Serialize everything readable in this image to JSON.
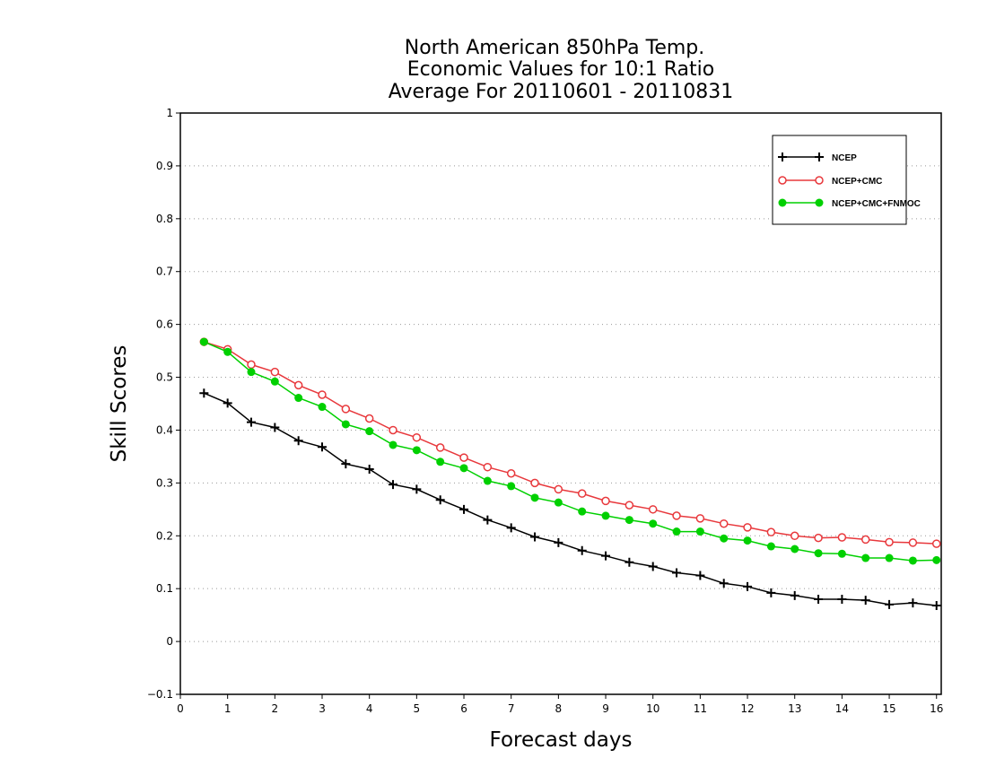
{
  "chart_data": {
    "type": "line",
    "title_lines": [
      "North American 850hPa Temp.",
      "Economic Values for 10:1 Ratio",
      "Average For 20110601 - 20110831"
    ],
    "xlabel": "Forecast days",
    "ylabel": "Skill Scores",
    "xlim": [
      0,
      16.1
    ],
    "ylim": [
      -0.1,
      1.0
    ],
    "x_ticks": [
      0,
      1,
      2,
      3,
      4,
      5,
      6,
      7,
      8,
      9,
      10,
      11,
      12,
      13,
      14,
      15,
      16
    ],
    "x_tick_labels": [
      "0",
      "1",
      "2",
      "3",
      "4",
      "5",
      "6",
      "7",
      "8",
      "9",
      "10",
      "11",
      "12",
      "13",
      "14",
      "15",
      "16"
    ],
    "y_ticks": [
      -0.1,
      0,
      0.1,
      0.2,
      0.3,
      0.4,
      0.5,
      0.6,
      0.7,
      0.8,
      0.9,
      1
    ],
    "y_tick_labels": [
      "−0.1",
      "0",
      "0.1",
      "0.2",
      "0.3",
      "0.4",
      "0.5",
      "0.6",
      "0.7",
      "0.8",
      "0.9",
      "1"
    ],
    "grid": "horizontal dotted",
    "legend_position": "top-right",
    "x": [
      0.5,
      1,
      1.5,
      2,
      2.5,
      3,
      3.5,
      4,
      4.5,
      5,
      5.5,
      6,
      6.5,
      7,
      7.5,
      8,
      8.5,
      9,
      9.5,
      10,
      10.5,
      11,
      11.5,
      12,
      12.5,
      13,
      13.5,
      14,
      14.5,
      15,
      15.5,
      16
    ],
    "series": [
      {
        "name": "NCEP",
        "color": "#000000",
        "marker": "plus",
        "values": [
          0.47,
          0.451,
          0.415,
          0.405,
          0.38,
          0.368,
          0.336,
          0.326,
          0.297,
          0.288,
          0.268,
          0.25,
          0.23,
          0.215,
          0.198,
          0.187,
          0.172,
          0.162,
          0.15,
          0.142,
          0.13,
          0.125,
          0.11,
          0.104,
          0.092,
          0.087,
          0.08,
          0.08,
          0.078,
          0.07,
          0.073,
          0.068
        ]
      },
      {
        "name": "NCEP+CMC",
        "color": "#e8383c",
        "marker": "open-circle",
        "values": [
          0.567,
          0.553,
          0.524,
          0.51,
          0.485,
          0.467,
          0.44,
          0.422,
          0.4,
          0.386,
          0.367,
          0.348,
          0.33,
          0.318,
          0.3,
          0.288,
          0.28,
          0.266,
          0.258,
          0.25,
          0.238,
          0.233,
          0.223,
          0.216,
          0.207,
          0.2,
          0.196,
          0.197,
          0.193,
          0.188,
          0.187,
          0.185
        ]
      },
      {
        "name": "NCEP+CMC+FNMOC",
        "color": "#00d000",
        "marker": "filled-circle",
        "values": [
          0.567,
          0.548,
          0.51,
          0.492,
          0.461,
          0.444,
          0.411,
          0.398,
          0.372,
          0.362,
          0.34,
          0.328,
          0.304,
          0.294,
          0.272,
          0.263,
          0.246,
          0.238,
          0.23,
          0.223,
          0.208,
          0.208,
          0.195,
          0.191,
          0.18,
          0.175,
          0.167,
          0.166,
          0.158,
          0.158,
          0.153,
          0.154
        ]
      }
    ]
  }
}
